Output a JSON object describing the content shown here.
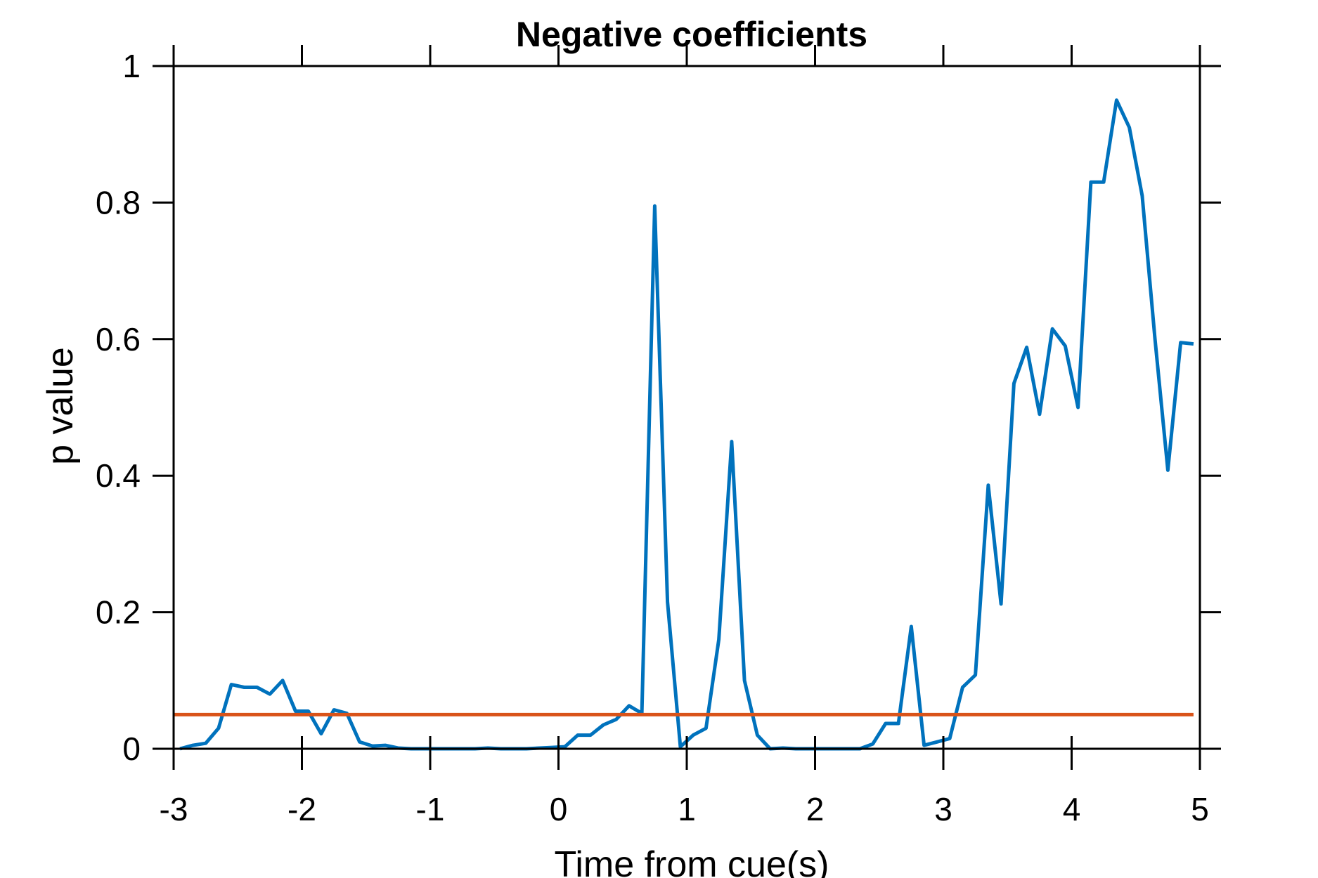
{
  "chart_data": {
    "type": "line",
    "title": "Negative coefficients",
    "xlabel": "Time from cue(s)",
    "ylabel": "p value",
    "xlim": [
      -3,
      5
    ],
    "ylim": [
      0,
      1
    ],
    "x_ticks": [
      -3,
      -2,
      -1,
      0,
      1,
      2,
      3,
      4,
      5
    ],
    "x_tick_labels": [
      "-3",
      "-2",
      "-1",
      "0",
      "1",
      "2",
      "3",
      "4",
      "5"
    ],
    "y_ticks": [
      0,
      0.2,
      0.4,
      0.6,
      0.8,
      1
    ],
    "y_tick_labels": [
      "0",
      "0.2",
      "0.4",
      "0.6",
      "0.8",
      "1"
    ],
    "grid": false,
    "box": true,
    "series": [
      {
        "color": "#0072BD",
        "x": [
          -2.95,
          -2.85,
          -2.75,
          -2.65,
          -2.55,
          -2.45,
          -2.35,
          -2.25,
          -2.15,
          -2.05,
          -1.95,
          -1.85,
          -1.75,
          -1.65,
          -1.55,
          -1.45,
          -1.35,
          -1.25,
          -1.15,
          -1.05,
          -0.95,
          -0.85,
          -0.75,
          -0.65,
          -0.55,
          -0.45,
          -0.35,
          -0.25,
          -0.15,
          -0.05,
          0.05,
          0.15,
          0.25,
          0.35,
          0.45,
          0.55,
          0.65,
          0.75,
          0.85,
          0.95,
          1.05,
          1.15,
          1.25,
          1.35,
          1.45,
          1.55,
          1.65,
          1.75,
          1.85,
          1.95,
          2.05,
          2.15,
          2.25,
          2.35,
          2.45,
          2.55,
          2.65,
          2.75,
          2.85,
          2.95,
          3.05,
          3.15,
          3.25,
          3.35,
          3.45,
          3.55,
          3.65,
          3.75,
          3.85,
          3.95,
          4.05,
          4.15,
          4.25,
          4.35,
          4.45,
          4.55,
          4.65,
          4.75,
          4.85,
          4.95
        ],
        "y": [
          0.0,
          0.005,
          0.008,
          0.03,
          0.094,
          0.09,
          0.09,
          0.08,
          0.1,
          0.055,
          0.055,
          0.022,
          0.057,
          0.052,
          0.01,
          0.004,
          0.005,
          0.001,
          0.0,
          0.0,
          0.0,
          0.0,
          0.0,
          0.0,
          0.001,
          0.0,
          0.0,
          0.0,
          0.001,
          0.002,
          0.003,
          0.02,
          0.02,
          0.035,
          0.043,
          0.063,
          0.052,
          0.795,
          0.215,
          0.003,
          0.02,
          0.03,
          0.16,
          0.45,
          0.1,
          0.02,
          0.0,
          0.001,
          0.0,
          0.0,
          0.0,
          0.0,
          0.0,
          0.0,
          0.007,
          0.037,
          0.037,
          0.179,
          0.005,
          0.01,
          0.015,
          0.09,
          0.108,
          0.386,
          0.212,
          0.535,
          0.588,
          0.49,
          0.615,
          0.59,
          0.5,
          0.83,
          0.83,
          0.95,
          0.91,
          0.81,
          0.6,
          0.408,
          0.595,
          0.593
        ]
      },
      {
        "color": "#D95319",
        "x": [
          -3,
          4.95
        ],
        "y": [
          0.05,
          0.05
        ]
      }
    ]
  }
}
